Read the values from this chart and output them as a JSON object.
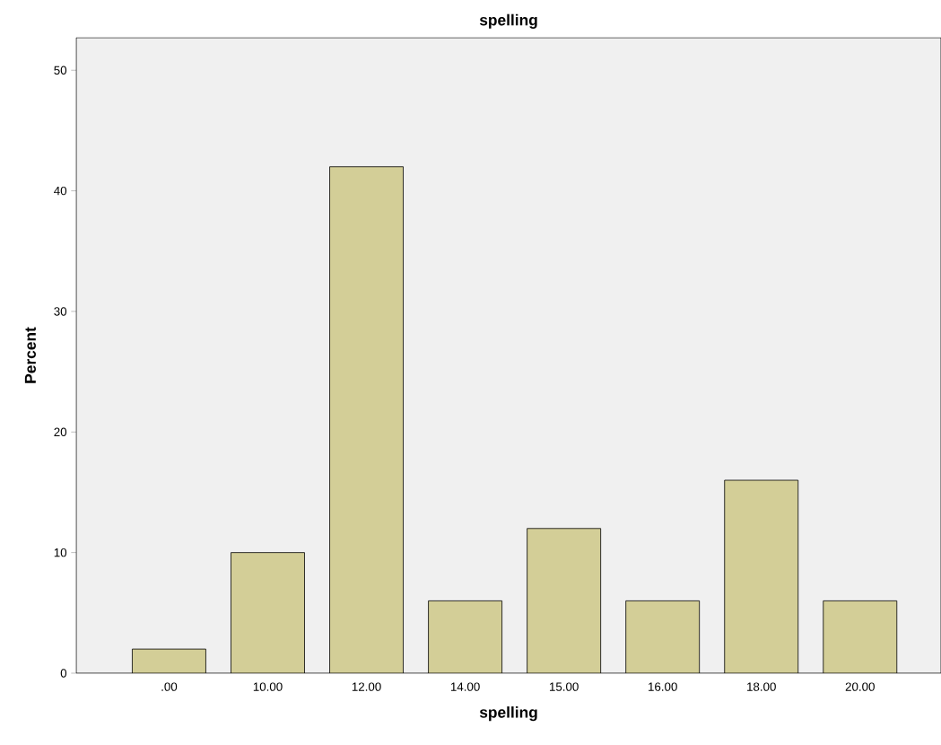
{
  "chart_data": {
    "type": "bar",
    "title": "spelling",
    "xlabel": "spelling",
    "ylabel": "Percent",
    "categories": [
      ".00",
      "10.00",
      "12.00",
      "14.00",
      "15.00",
      "16.00",
      "18.00",
      "20.00"
    ],
    "values": [
      2,
      10,
      42,
      6,
      12,
      6,
      16,
      6
    ],
    "color": "#d3ce97",
    "ylim": [
      0,
      52.7
    ],
    "yticks": [
      0,
      10,
      20,
      30,
      40,
      50
    ]
  }
}
